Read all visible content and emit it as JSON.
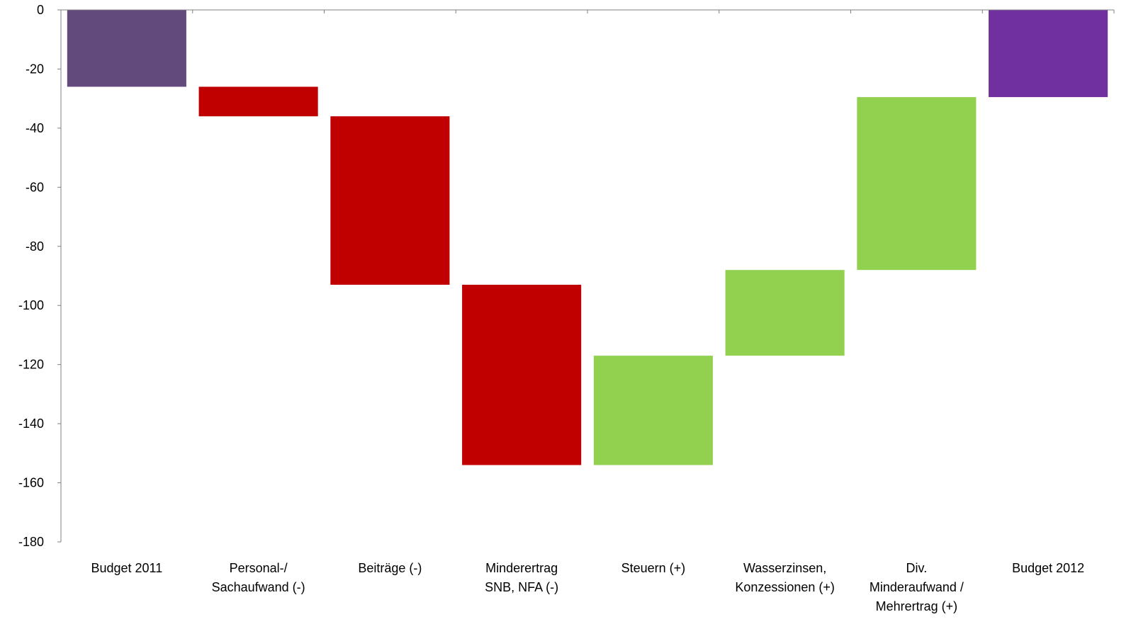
{
  "chart_data": {
    "type": "bar",
    "subtype": "waterfall",
    "title": "",
    "xlabel": "",
    "ylabel": "",
    "ylim": [
      -180,
      0
    ],
    "y_ticks": [
      0,
      -20,
      -40,
      -60,
      -80,
      -100,
      -120,
      -140,
      -160,
      -180
    ],
    "y_tick_labels": [
      "0",
      "-20",
      "-40",
      "-60",
      "-80",
      "-100",
      "-120",
      "-140",
      "-160",
      "-180"
    ],
    "grid": false,
    "legend": "none",
    "categories": [
      [
        "Budget 2011"
      ],
      [
        "Personal-/",
        "Sachaufwand (-)"
      ],
      [
        "Beiträge (-)"
      ],
      [
        "Minderertrag",
        "SNB, NFA (-)"
      ],
      [
        "Steuern (+)"
      ],
      [
        "Wasserzinsen,",
        "Konzessionen (+)"
      ],
      [
        "Div.",
        "Minderaufwand /",
        "Mehrertrag (+)"
      ],
      [
        "Budget 2012"
      ]
    ],
    "bars": [
      {
        "start": 0,
        "end": -26,
        "kind": "total"
      },
      {
        "start": -26,
        "end": -36,
        "kind": "decrease"
      },
      {
        "start": -36,
        "end": -93,
        "kind": "decrease"
      },
      {
        "start": -93,
        "end": -154,
        "kind": "decrease"
      },
      {
        "start": -154,
        "end": -117,
        "kind": "increase"
      },
      {
        "start": -117,
        "end": -88,
        "kind": "increase"
      },
      {
        "start": -88,
        "end": -29.5,
        "kind": "increase"
      },
      {
        "start": 0,
        "end": -29.5,
        "kind": "total"
      }
    ],
    "colors": {
      "total_start": "#624A7C",
      "total_end": "#7030A0",
      "decrease": "#C00000",
      "increase": "#92D050",
      "axis": "#808080"
    }
  }
}
